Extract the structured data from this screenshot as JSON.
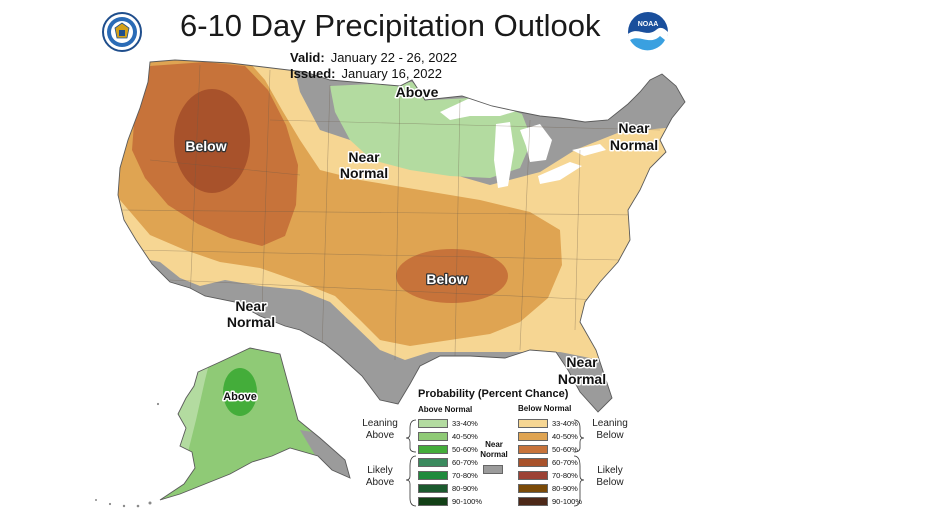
{
  "header": {
    "title": "6-10 Day Precipitation Outlook",
    "valid_label": "Valid:",
    "valid_value": "January 22 - 26, 2022",
    "issued_label": "Issued:",
    "issued_value": "January 16, 2022"
  },
  "logos": {
    "left": "commerce-seal",
    "right": "noaa-logo"
  },
  "map": {
    "labels": {
      "above_north": "Above",
      "near_north": [
        "Near",
        "Normal"
      ],
      "near_northeast": [
        "Near",
        "Normal"
      ],
      "below_northwest": "Below",
      "below_central": "Below",
      "near_southwest": [
        "Near",
        "Normal"
      ],
      "near_southeast": [
        "Near",
        "Normal"
      ],
      "above_alaska": "Above"
    },
    "colors": {
      "ocean": "#ffffff",
      "lakes": "#ffffff",
      "near_normal": "#9b9b9b",
      "above_33_40": "#b3dba0",
      "above_40_50": "#8fca76",
      "above_50_60": "#44ad3a",
      "below_33_40": "#f6d693",
      "below_40_50": "#dfa452",
      "below_50_60": "#c7733a",
      "below_60_70": "#a8522b"
    }
  },
  "legend": {
    "title": "Probability (Percent Chance)",
    "above_head": "Above Normal",
    "below_head": "Below Normal",
    "near_normal_label": [
      "Near",
      "Normal"
    ],
    "near_normal_color": "#9b9b9b",
    "leaning_above": [
      "Leaning",
      "Above"
    ],
    "likely_above": [
      "Likely",
      "Above"
    ],
    "leaning_below": [
      "Leaning",
      "Below"
    ],
    "likely_below": [
      "Likely",
      "Below"
    ],
    "above": [
      {
        "range": "33-40%",
        "color": "#b3dba0"
      },
      {
        "range": "40-50%",
        "color": "#8fca76"
      },
      {
        "range": "50-60%",
        "color": "#44ad3a"
      },
      {
        "range": "60-70%",
        "color": "#3b8a5e"
      },
      {
        "range": "70-80%",
        "color": "#1f8a3c"
      },
      {
        "range": "80-90%",
        "color": "#1b5a2e"
      },
      {
        "range": "90-100%",
        "color": "#124016"
      }
    ],
    "below": [
      {
        "range": "33-40%",
        "color": "#f6d693"
      },
      {
        "range": "40-50%",
        "color": "#dfa452"
      },
      {
        "range": "50-60%",
        "color": "#c7733a"
      },
      {
        "range": "60-70%",
        "color": "#a8522b"
      },
      {
        "range": "70-80%",
        "color": "#9c4235"
      },
      {
        "range": "80-90%",
        "color": "#7a4a08"
      },
      {
        "range": "90-100%",
        "color": "#4d2818"
      }
    ]
  }
}
